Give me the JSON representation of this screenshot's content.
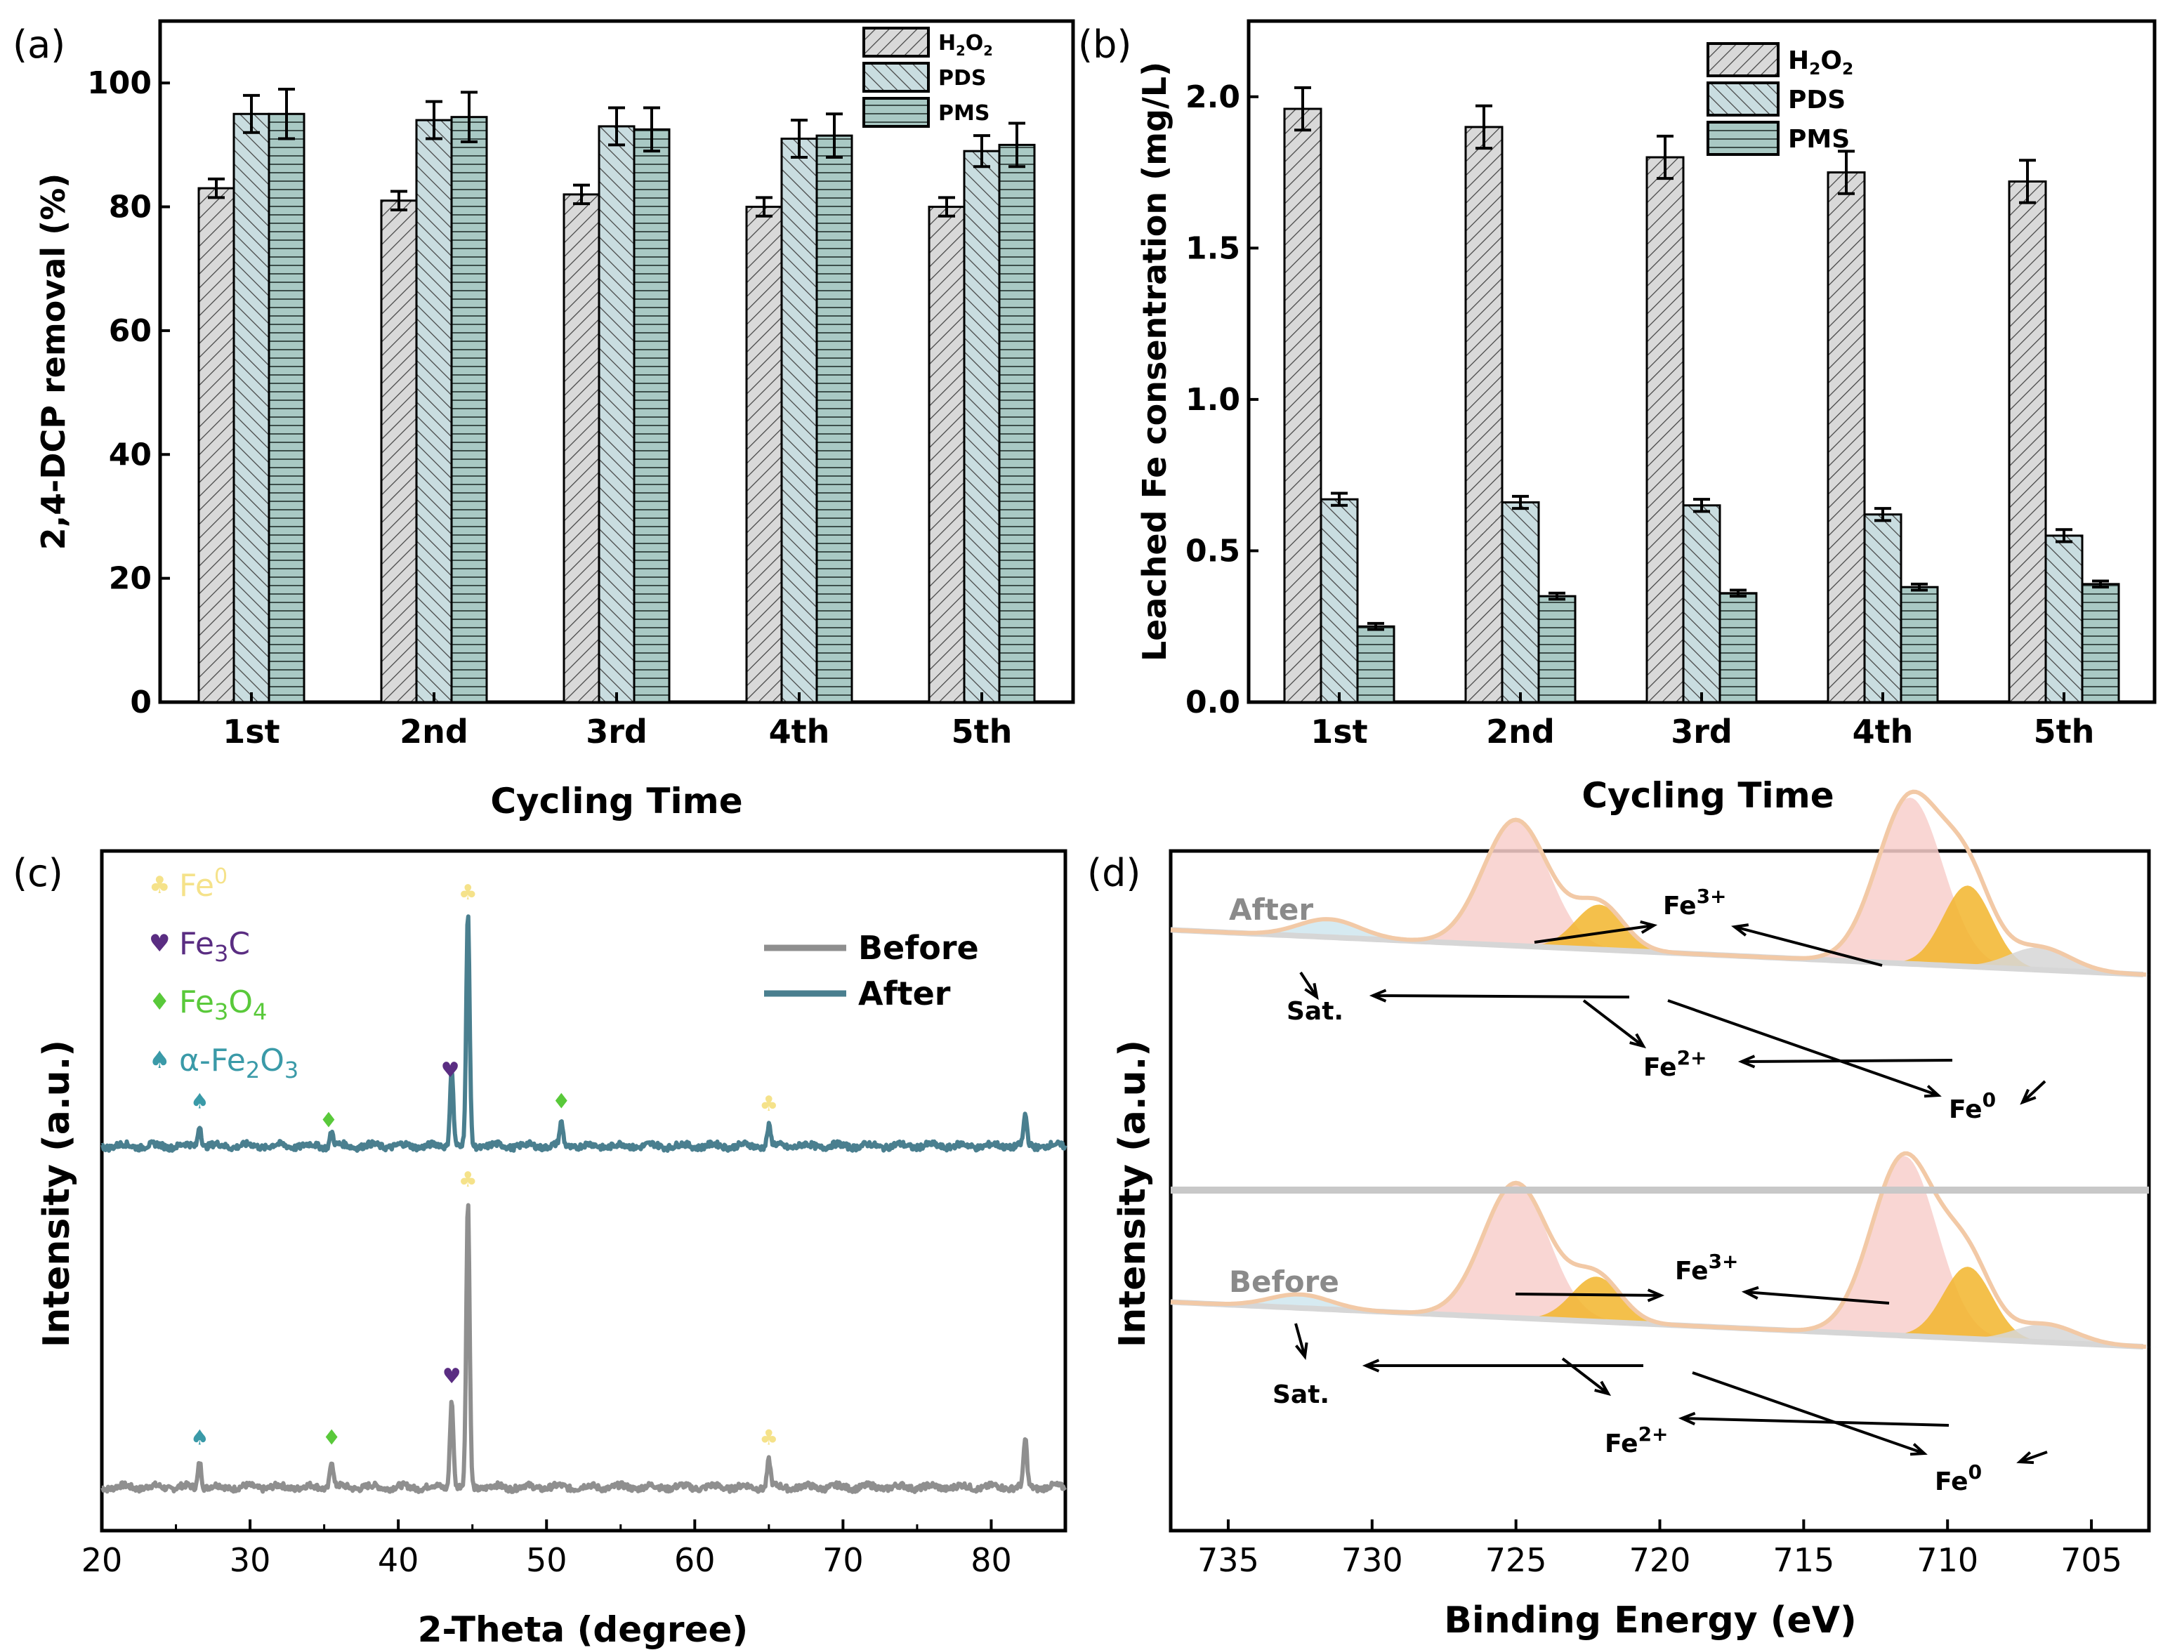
{
  "chart_data": [
    {
      "panel": "(a)",
      "type": "bar",
      "title": "",
      "xlabel": "Cycling Time",
      "ylabel": "2,4-DCP removal (%)",
      "categories": [
        "1st",
        "2nd",
        "3rd",
        "4th",
        "5th"
      ],
      "ylim": [
        0,
        110
      ],
      "yticks": [
        0,
        20,
        40,
        60,
        80,
        100
      ],
      "ytick_labels": [
        "0",
        "20",
        "40",
        "60",
        "80",
        "100"
      ],
      "legend_position": "top-right",
      "series": [
        {
          "name": "H2O2",
          "label_main": "H",
          "label_sub1": "2",
          "label_mid": "O",
          "label_sub2": "2",
          "values": [
            83,
            81,
            82,
            80,
            80
          ],
          "errors": [
            1.5,
            1.5,
            1.5,
            1.5,
            1.5
          ]
        },
        {
          "name": "PDS",
          "values": [
            95,
            94,
            93,
            91,
            89
          ],
          "errors": [
            3,
            3,
            3,
            3,
            2.5
          ]
        },
        {
          "name": "PMS",
          "values": [
            95,
            94.5,
            92.5,
            91.5,
            90
          ],
          "errors": [
            4,
            4,
            3.5,
            3.5,
            3.5
          ]
        }
      ]
    },
    {
      "panel": "(b)",
      "type": "bar",
      "title": "",
      "xlabel": "Cycling Time",
      "ylabel": "Leached Fe consentration (mg/L)",
      "categories": [
        "1st",
        "2nd",
        "3rd",
        "4th",
        "5th"
      ],
      "ylim": [
        0,
        2.25
      ],
      "yticks": [
        0,
        0.5,
        1.0,
        1.5,
        2.0
      ],
      "ytick_labels": [
        "0.0",
        "0.5",
        "1.0",
        "1.5",
        "2.0"
      ],
      "legend_position": "top-right",
      "series": [
        {
          "name": "H2O2",
          "values": [
            1.96,
            1.9,
            1.8,
            1.75,
            1.72
          ],
          "errors": [
            0.07,
            0.07,
            0.07,
            0.07,
            0.07
          ]
        },
        {
          "name": "PDS",
          "values": [
            0.67,
            0.66,
            0.65,
            0.62,
            0.55
          ],
          "errors": [
            0.02,
            0.02,
            0.02,
            0.02,
            0.02
          ]
        },
        {
          "name": "PMS",
          "values": [
            0.25,
            0.35,
            0.36,
            0.38,
            0.39
          ],
          "errors": [
            0.01,
            0.01,
            0.01,
            0.01,
            0.01
          ]
        }
      ]
    },
    {
      "panel": "(c)",
      "type": "line",
      "title": "",
      "xlabel": "2-Theta (degree)",
      "ylabel": "Intensity (a.u.)",
      "xlim": [
        20,
        85
      ],
      "xticks": [
        20,
        30,
        40,
        50,
        60,
        70,
        80
      ],
      "ytick_labels": [],
      "legend_position": "top-right",
      "series": [
        {
          "name": "Before",
          "color": "#8f8f8f",
          "offset": 0,
          "peaks": [
            [
              26.6,
              0.055
            ],
            [
              35.5,
              0.055
            ],
            [
              43.6,
              0.18
            ],
            [
              44.7,
              0.58
            ],
            [
              65.0,
              0.055
            ],
            [
              82.3,
              0.095
            ]
          ]
        },
        {
          "name": "After",
          "color": "#4a7f8f",
          "offset": 0.7,
          "peaks": [
            [
              26.6,
              0.045
            ],
            [
              35.5,
              0.03
            ],
            [
              43.6,
              0.16
            ],
            [
              44.7,
              0.47
            ],
            [
              51.0,
              0.045
            ],
            [
              65.0,
              0.04
            ],
            [
              82.3,
              0.06
            ]
          ]
        }
      ],
      "phase_legend": [
        {
          "symbol": "♣",
          "name": "Fe",
          "sup": "0",
          "color": "#f5e28a"
        },
        {
          "symbol": "♥",
          "name": "Fe3C",
          "color": "#5a2d82"
        },
        {
          "symbol": "♦",
          "name": "Fe3O4",
          "color": "#59c93a"
        },
        {
          "symbol": "♠",
          "name": "α-Fe2O3",
          "color": "#3a9aa8"
        }
      ],
      "markers": {
        "Before": [
          {
            "x": 26.6,
            "symbol": "♠",
            "color": "#3a9aa8"
          },
          {
            "x": 35.5,
            "symbol": "♦",
            "color": "#59c93a"
          },
          {
            "x": 43.6,
            "symbol": "♥",
            "color": "#5a2d82"
          },
          {
            "x": 44.7,
            "symbol": "♣",
            "color": "#f5e28a"
          },
          {
            "x": 65.0,
            "symbol": "♣",
            "color": "#f5e28a"
          }
        ],
        "After": [
          {
            "x": 26.6,
            "symbol": "♠",
            "color": "#3a9aa8"
          },
          {
            "x": 35.3,
            "symbol": "♦",
            "color": "#59c93a"
          },
          {
            "x": 43.5,
            "symbol": "♥",
            "color": "#5a2d82"
          },
          {
            "x": 44.7,
            "symbol": "♣",
            "color": "#f5e28a"
          },
          {
            "x": 51.0,
            "symbol": "♦",
            "color": "#59c93a"
          },
          {
            "x": 65.0,
            "symbol": "♣",
            "color": "#f5e28a"
          }
        ]
      }
    },
    {
      "panel": "(d)",
      "type": "line",
      "title": "",
      "xlabel": "Binding Energy (eV)",
      "ylabel": "Intensity (a.u.)",
      "xlim": [
        737,
        703
      ],
      "xticks": [
        735,
        730,
        725,
        720,
        715,
        710,
        705
      ],
      "legend_position": "none",
      "spectra": [
        {
          "name": "After",
          "label": "After",
          "peaks": [
            {
              "species": "Fe3+",
              "center": 725.0,
              "height": 0.28,
              "color": "#f6c6c0"
            },
            {
              "species": "Fe3+",
              "center": 711.3,
              "height": 0.37,
              "color": "#f6c6c0"
            },
            {
              "species": "Fe2+",
              "center": 722.1,
              "height": 0.1,
              "color": "#f0b429"
            },
            {
              "species": "Fe2+",
              "center": 709.3,
              "height": 0.18,
              "color": "#f0b429"
            },
            {
              "species": "Fe0",
              "center": 706.8,
              "height": 0.05,
              "color": "#c8c8c8"
            },
            {
              "species": "Sat.",
              "center": 731.5,
              "height": 0.04,
              "color": "#c7e3ec"
            }
          ]
        },
        {
          "name": "Before",
          "label": "Before",
          "peaks": [
            {
              "species": "Fe3+",
              "center": 725.0,
              "height": 0.3,
              "color": "#f6c6c0"
            },
            {
              "species": "Fe3+",
              "center": 711.5,
              "height": 0.4,
              "color": "#f6c6c0"
            },
            {
              "species": "Fe2+",
              "center": 722.2,
              "height": 0.1,
              "color": "#f0b429"
            },
            {
              "species": "Fe2+",
              "center": 709.3,
              "height": 0.16,
              "color": "#f0b429"
            },
            {
              "species": "Fe0",
              "center": 706.6,
              "height": 0.04,
              "color": "#c8c8c8"
            },
            {
              "species": "Sat.",
              "center": 732.5,
              "height": 0.03,
              "color": "#c7e3ec"
            }
          ]
        }
      ],
      "annotations": {
        "fe3": "Fe",
        "fe3_sup": "3+",
        "fe2": "Fe",
        "fe2_sup": "2+",
        "fe0": "Fe",
        "fe0_sup": "0",
        "sat": "Sat."
      }
    }
  ],
  "colors": {
    "h2o2_fill": "#d9d9d9",
    "pds_fill": "#c9dde0",
    "pms_fill": "#a9c9c4",
    "axis": "#000000",
    "before_line": "#8f8f8f",
    "after_line": "#4a7f8f",
    "envelope": "#f2c9a6",
    "fe3_fill": "#f8cfcb",
    "fe2_fill": "#f2b52c",
    "sat_fill": "#cfe6ef",
    "bg_fill": "#d6d6d6",
    "divider": "#c8c8c8"
  }
}
